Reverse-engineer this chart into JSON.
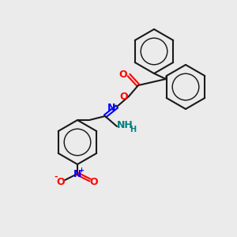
{
  "background_color": "#ebebeb",
  "bond_color": "#1a1a1a",
  "bond_width": 1.5,
  "atom_colors": {
    "O": "#ff0000",
    "N": "#0000ff",
    "N_amidine": "#008080",
    "N_nitro": "#0000ff"
  }
}
